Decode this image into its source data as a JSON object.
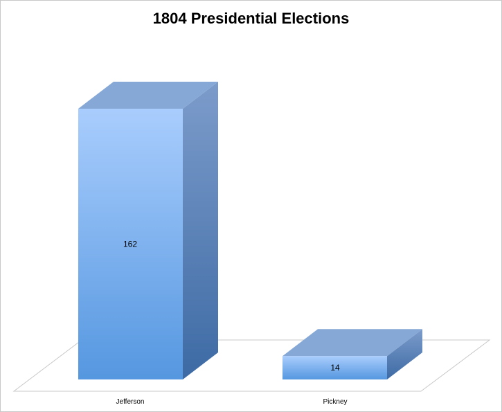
{
  "chart_data": {
    "type": "bar",
    "title": "1804 Presidential Elections",
    "categories": [
      "Jefferson",
      "Pickney"
    ],
    "values": [
      162,
      14
    ],
    "data_labels": [
      "162",
      "14"
    ],
    "xlabel": "",
    "ylabel": "",
    "ylim": [
      0,
      162
    ],
    "grid": false,
    "legend": "none",
    "style": "3d",
    "colors": {
      "front_top": "#a9cdfd",
      "front_bottom": "#5597e0",
      "side_top": "#7c9ccb",
      "side_bottom": "#3d6aa4",
      "top": "#86a8d6",
      "floor": "#ffffff",
      "floor_stroke": "#c8c8c8"
    }
  }
}
